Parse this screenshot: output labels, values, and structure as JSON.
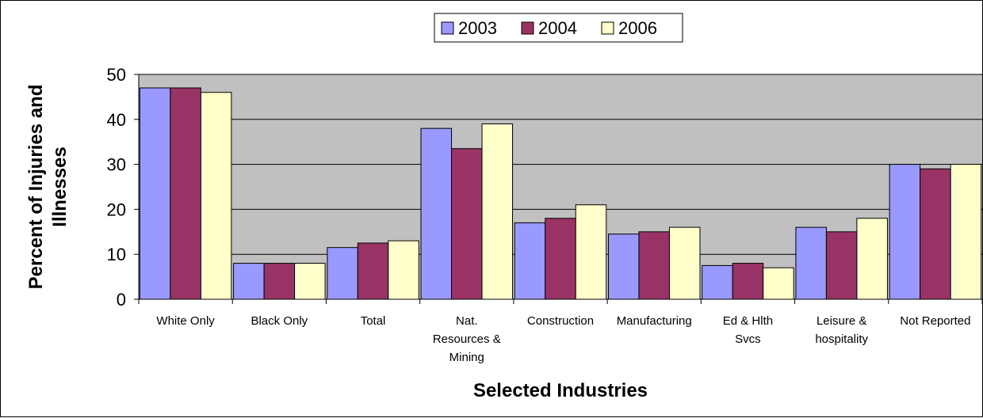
{
  "chart_data": {
    "type": "bar",
    "title": "",
    "xlabel": "Selected Industries",
    "ylabel": "Percent of Injuries and Illnesses",
    "ylabel_lines": [
      "Percent of Injuries and",
      "Illnesses"
    ],
    "ylim": [
      0,
      50
    ],
    "yticks": [
      "0",
      "10",
      "20",
      "30",
      "40",
      "50"
    ],
    "grid": true,
    "legend_position": "top-center",
    "categories": [
      [
        "White Only"
      ],
      [
        "Black Only"
      ],
      [
        "Total"
      ],
      [
        "Nat.",
        "Resources &",
        "Mining"
      ],
      [
        "Construction"
      ],
      [
        "Manufacturing"
      ],
      [
        "Ed & Hlth",
        "Svcs"
      ],
      [
        "Leisure &",
        "hospitality"
      ],
      [
        "Not Reported"
      ]
    ],
    "series": [
      {
        "name": "2003",
        "color": "#9999ff",
        "values": [
          47,
          8,
          11.5,
          38,
          17,
          14.5,
          7.5,
          16,
          30
        ]
      },
      {
        "name": "2004",
        "color": "#993366",
        "values": [
          47,
          8,
          12.5,
          33.5,
          18,
          15,
          8,
          15,
          29
        ]
      },
      {
        "name": "2006",
        "color": "#ffffcc",
        "values": [
          46,
          8,
          13,
          39,
          21,
          16,
          7,
          18,
          30
        ]
      }
    ],
    "plot_background": "#c0c0c0"
  }
}
